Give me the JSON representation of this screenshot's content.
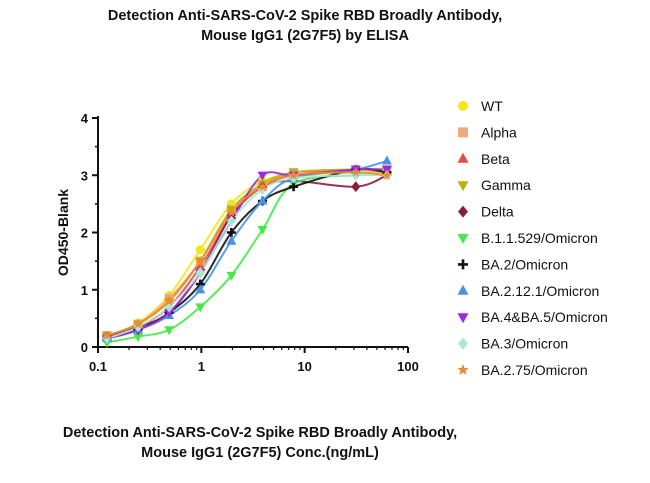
{
  "chart_data": {
    "type": "scatter",
    "title_lines": [
      "Detection Anti-SARS-CoV-2 Spike RBD Broadly Antibody,",
      "Mouse IgG1 (2G7F5) by ELISA"
    ],
    "xlabel_lines": [
      "Detection Anti-SARS-CoV-2 Spike RBD Broadly Antibody,",
      "Mouse IgG1 (2G7F5) Conc.(ng/mL)"
    ],
    "ylabel": "OD450-Blank",
    "xscale": "log",
    "xlim": [
      0.1,
      100
    ],
    "ylim": [
      0,
      4
    ],
    "x_ticks": [
      "0.1",
      "1",
      "10",
      "100"
    ],
    "y_ticks": [
      "0",
      "1",
      "2",
      "3",
      "4"
    ],
    "legend_position": "right",
    "fit": "4-parameter logistic curves",
    "x": [
      0.122,
      0.244,
      0.488,
      0.977,
      1.953,
      3.906,
      7.813,
      31.25,
      62.5
    ],
    "series": [
      {
        "name": "WT",
        "color": "#f2e61a",
        "marker": "circle",
        "values": [
          0.18,
          0.42,
          0.9,
          1.7,
          2.5,
          2.9,
          3.0,
          3.05,
          3.05
        ]
      },
      {
        "name": "Alpha",
        "color": "#f0a880",
        "marker": "square",
        "values": [
          0.2,
          0.4,
          0.85,
          1.5,
          2.4,
          2.8,
          3.05,
          3.1,
          3.1
        ]
      },
      {
        "name": "Beta",
        "color": "#e84848",
        "marker": "triangle-up",
        "values": [
          0.18,
          0.35,
          0.7,
          1.4,
          2.3,
          2.8,
          3.0,
          3.1,
          3.05
        ]
      },
      {
        "name": "Gamma",
        "color": "#b8b010",
        "marker": "triangle-down",
        "values": [
          0.2,
          0.4,
          0.8,
          1.5,
          2.4,
          2.85,
          3.05,
          3.1,
          3.1
        ]
      },
      {
        "name": "Delta",
        "color": "#8b1c3c",
        "marker": "diamond",
        "values": [
          0.18,
          0.35,
          0.6,
          1.3,
          2.3,
          2.8,
          2.9,
          2.8,
          3.0
        ]
      },
      {
        "name": "B.1.1.529/Omicron",
        "color": "#48e848",
        "marker": "triangle-down",
        "values": [
          0.08,
          0.18,
          0.3,
          0.7,
          1.25,
          2.05,
          2.85,
          3.0,
          3.0
        ]
      },
      {
        "name": "BA.2/Omicron",
        "color": "#111111",
        "marker": "plus",
        "values": [
          0.15,
          0.3,
          0.6,
          1.1,
          2.0,
          2.55,
          2.8,
          3.1,
          3.05
        ]
      },
      {
        "name": "BA.2.12.1/Omicron",
        "color": "#4a90e8",
        "marker": "triangle-up",
        "values": [
          0.15,
          0.3,
          0.55,
          1.0,
          1.85,
          2.55,
          2.95,
          3.1,
          3.25
        ]
      },
      {
        "name": "BA.4&BA.5/Omicron",
        "color": "#9a2ae0",
        "marker": "triangle-down",
        "values": [
          0.15,
          0.3,
          0.6,
          1.3,
          2.2,
          3.0,
          3.0,
          3.1,
          3.1
        ]
      },
      {
        "name": "BA.3/Omicron",
        "color": "#a8e8d8",
        "marker": "diamond",
        "values": [
          0.15,
          0.35,
          0.7,
          1.3,
          2.2,
          2.75,
          2.95,
          3.0,
          3.0
        ]
      },
      {
        "name": "BA.2.75/Omicron",
        "color": "#f08830",
        "marker": "star",
        "values": [
          0.2,
          0.4,
          0.8,
          1.5,
          2.35,
          2.8,
          3.0,
          3.05,
          3.0
        ]
      }
    ]
  }
}
